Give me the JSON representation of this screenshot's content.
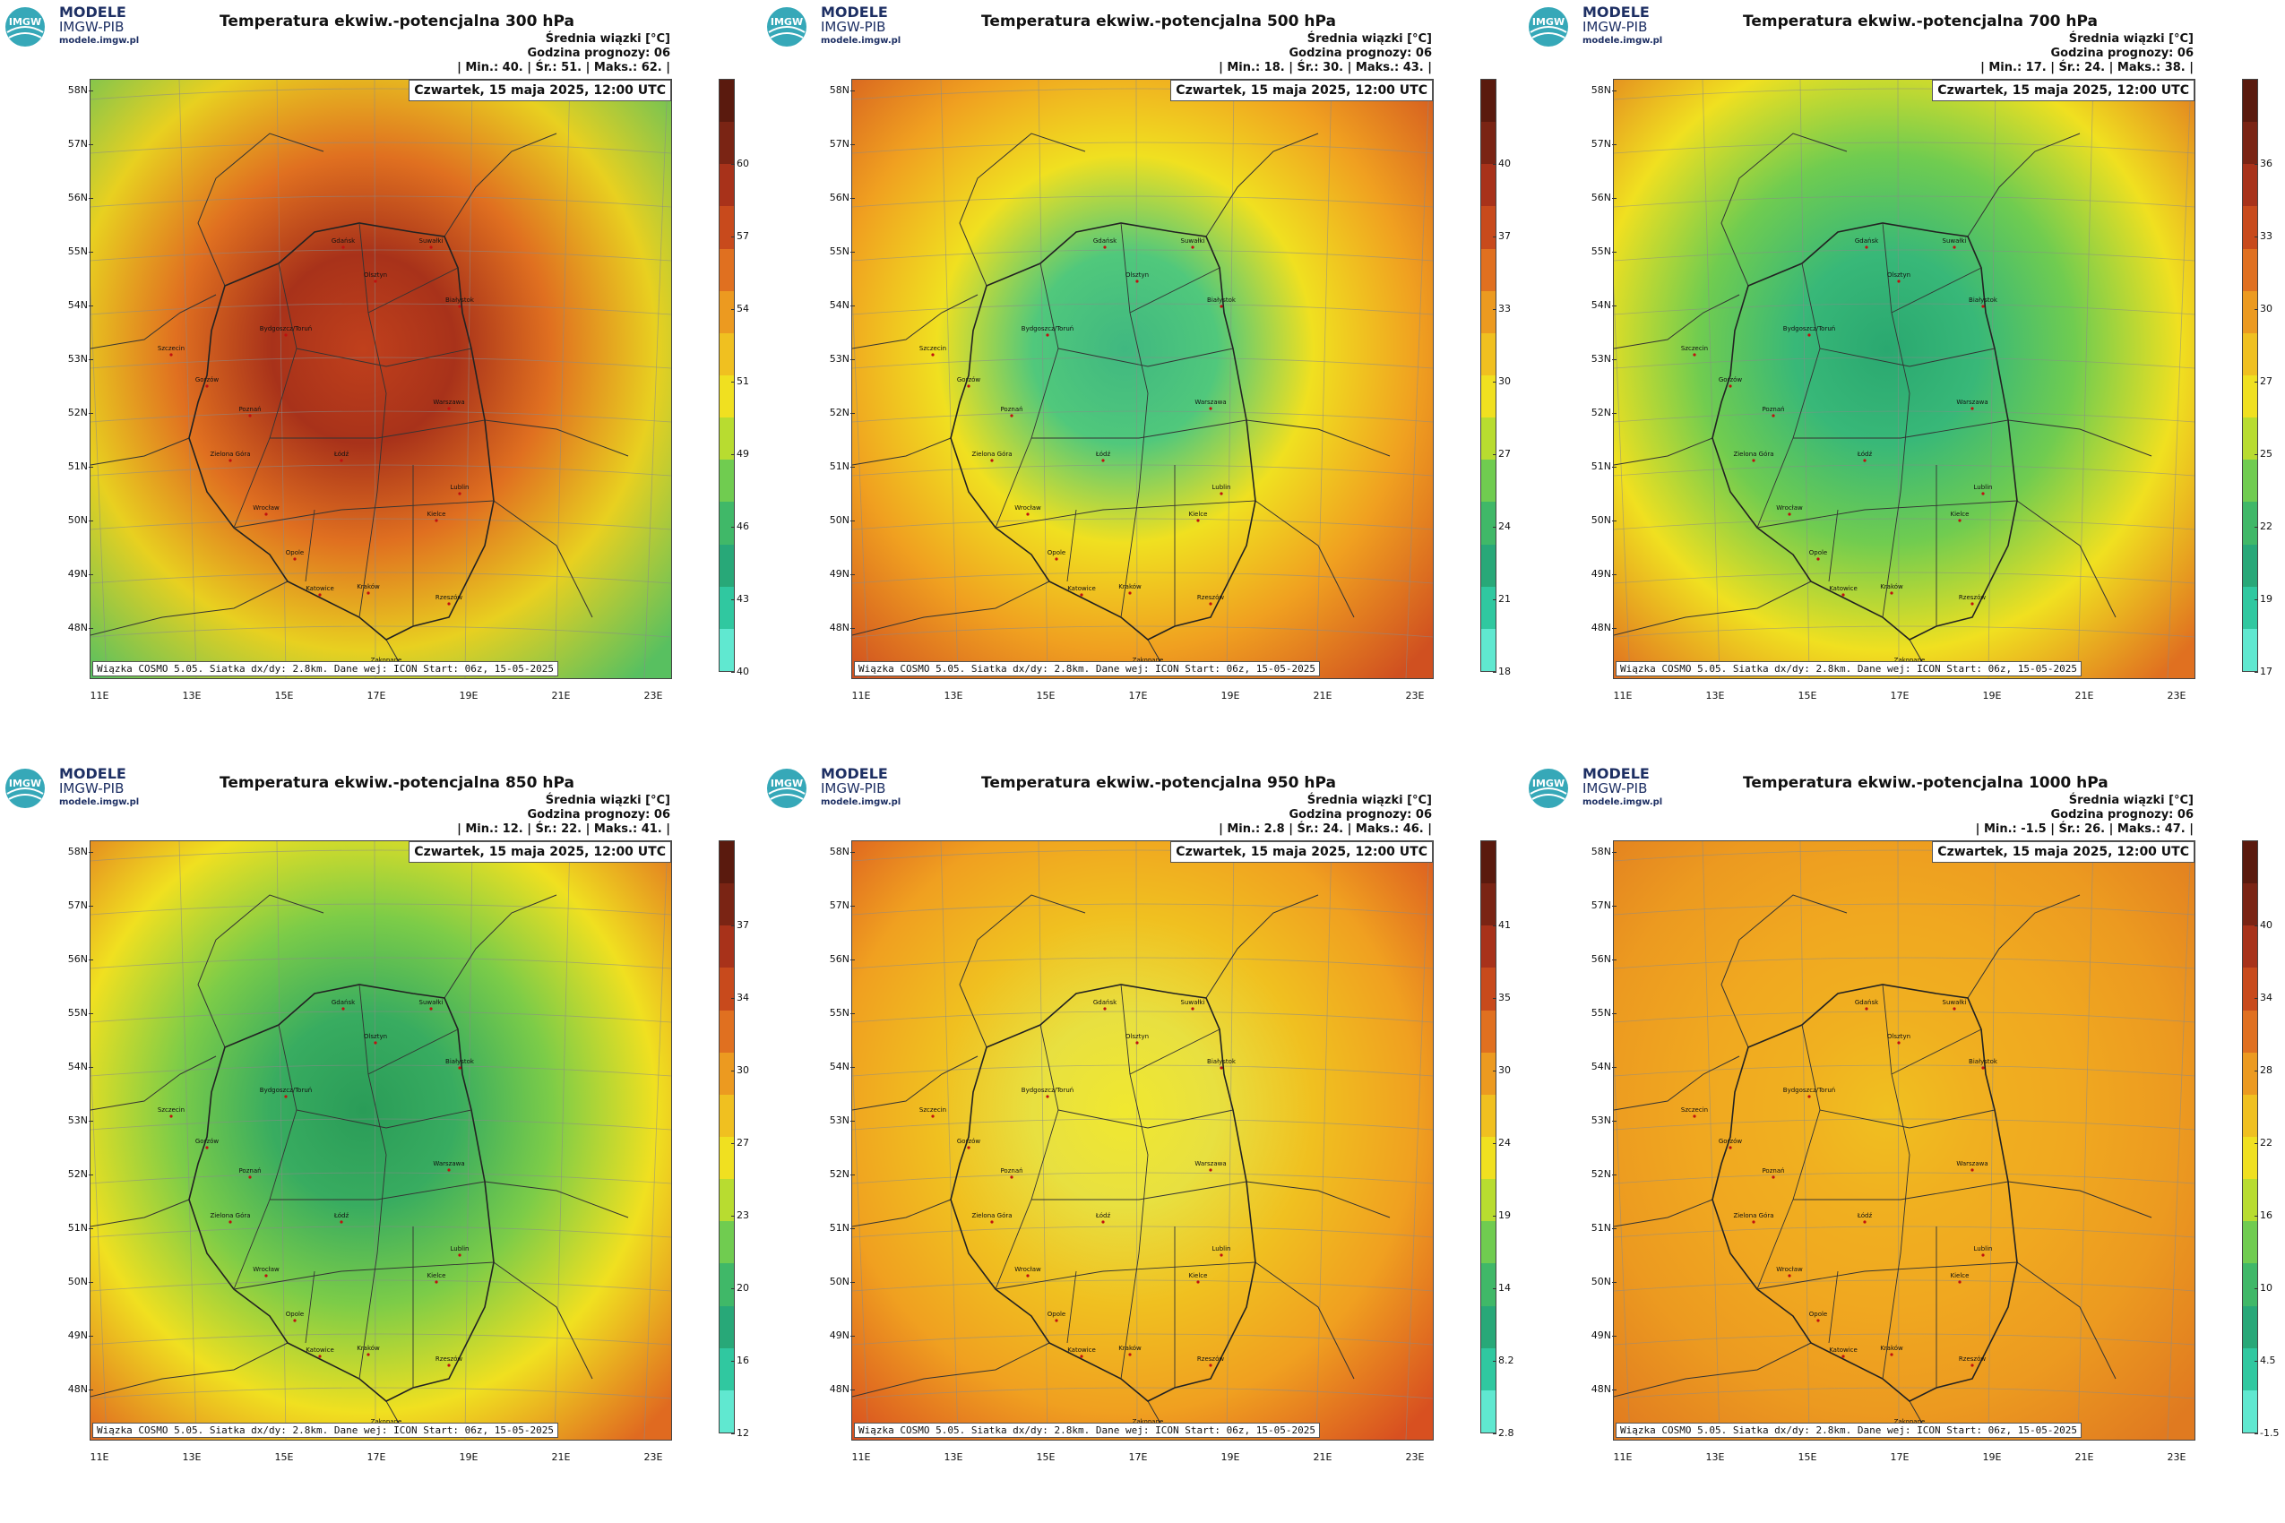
{
  "logo": {
    "line1": "MODELE",
    "line2": "IMGW-PIB",
    "line3": "modele.imgw.pl",
    "badge": "IMGW"
  },
  "units": "Średnia wiązki [°C]",
  "forecast_hour_label": "Godzina prognozy: 06",
  "date_label": "Czwartek, 15 maja 2025, 12:00 UTC",
  "footer": "Wiązka COSMO 5.05. Siatka dx/dy: 2.8km. Dane wej: ICON Start: 06z, 15-05-2025",
  "lat_labels": [
    "58N",
    "57N",
    "56N",
    "55N",
    "54N",
    "53N",
    "52N",
    "51N",
    "50N",
    "49N",
    "48N"
  ],
  "lon_labels": [
    "11E",
    "13E",
    "15E",
    "17E",
    "19E",
    "21E",
    "23E"
  ],
  "cities": [
    "Gdańsk",
    "Olsztyn",
    "Suwałki",
    "Szczecin",
    "Bydgoszcz/Toruń",
    "Białystok",
    "Gorzów",
    "Poznań",
    "Warszawa",
    "Zielona Góra",
    "Łódź",
    "Lublin",
    "Wrocław",
    "Kielce",
    "Opole",
    "Katowice",
    "Kraków",
    "Rzeszów",
    "Zakopane"
  ],
  "panels": [
    {
      "title": "Temperatura ekwiw.-potencjalna 300 hPa",
      "min": "40.",
      "avg": "51.",
      "max": "62.",
      "ticks": [
        "60",
        "57",
        "54",
        "51",
        "49",
        "46",
        "43",
        "40"
      ],
      "colors": {
        "center": "#c0401c",
        "core": "#a8321a",
        "mid": "#e07020",
        "outer": "#e8d020",
        "edge": "#58c060"
      }
    },
    {
      "title": "Temperatura ekwiw.-potencjalna 500 hPa",
      "min": "18.",
      "avg": "30.",
      "max": "43.",
      "ticks": [
        "40",
        "37",
        "33",
        "30",
        "27",
        "24",
        "21",
        "18"
      ],
      "colors": {
        "center": "#40b880",
        "core": "#50c87c",
        "mid": "#f0e020",
        "outer": "#f0a020",
        "edge": "#d05020"
      }
    },
    {
      "title": "Temperatura ekwiw.-potencjalna 700 hPa",
      "min": "17.",
      "avg": "24.",
      "max": "38.",
      "ticks": [
        "36",
        "33",
        "30",
        "27",
        "25",
        "22",
        "19",
        "17"
      ],
      "colors": {
        "center": "#2aa870",
        "core": "#38b878",
        "mid": "#70cc50",
        "outer": "#f0e020",
        "edge": "#e07020"
      }
    },
    {
      "title": "Temperatura ekwiw.-potencjalna 850 hPa",
      "min": "12.",
      "avg": "22.",
      "max": "41.",
      "ticks": [
        "37",
        "34",
        "30",
        "27",
        "23",
        "20",
        "16",
        "12"
      ],
      "colors": {
        "center": "#2a9c58",
        "core": "#38ac60",
        "mid": "#7ccc48",
        "outer": "#f0e020",
        "edge": "#e06a20"
      }
    },
    {
      "title": "Temperatura ekwiw.-potencjalna 950 hPa",
      "min": "2.8",
      "avg": "24.",
      "max": "46.",
      "ticks": [
        "41",
        "35",
        "30",
        "24",
        "19",
        "14",
        "8.2",
        "2.8"
      ],
      "colors": {
        "center": "#f0e830",
        "core": "#e8e040",
        "mid": "#f0c020",
        "outer": "#f0a020",
        "edge": "#d85020"
      }
    },
    {
      "title": "Temperatura ekwiw.-potencjalna 1000 hPa",
      "min": "-1.5",
      "avg": "26.",
      "max": "47.",
      "ticks": [
        "40",
        "34",
        "28",
        "22",
        "16",
        "10",
        "4.5",
        "-1.5"
      ],
      "colors": {
        "center": "#f0c020",
        "core": "#f0b020",
        "mid": "#f0a820",
        "outer": "#ec9a20",
        "edge": "#e07a20"
      }
    }
  ],
  "colorbar": [
    "#5a1a0e",
    "#7a2414",
    "#a8321a",
    "#c84a1c",
    "#e07020",
    "#ec9a20",
    "#f0c020",
    "#f0e020",
    "#b8dc30",
    "#70cc50",
    "#40b868",
    "#28a878",
    "#30c8a0",
    "#60e8d0"
  ]
}
